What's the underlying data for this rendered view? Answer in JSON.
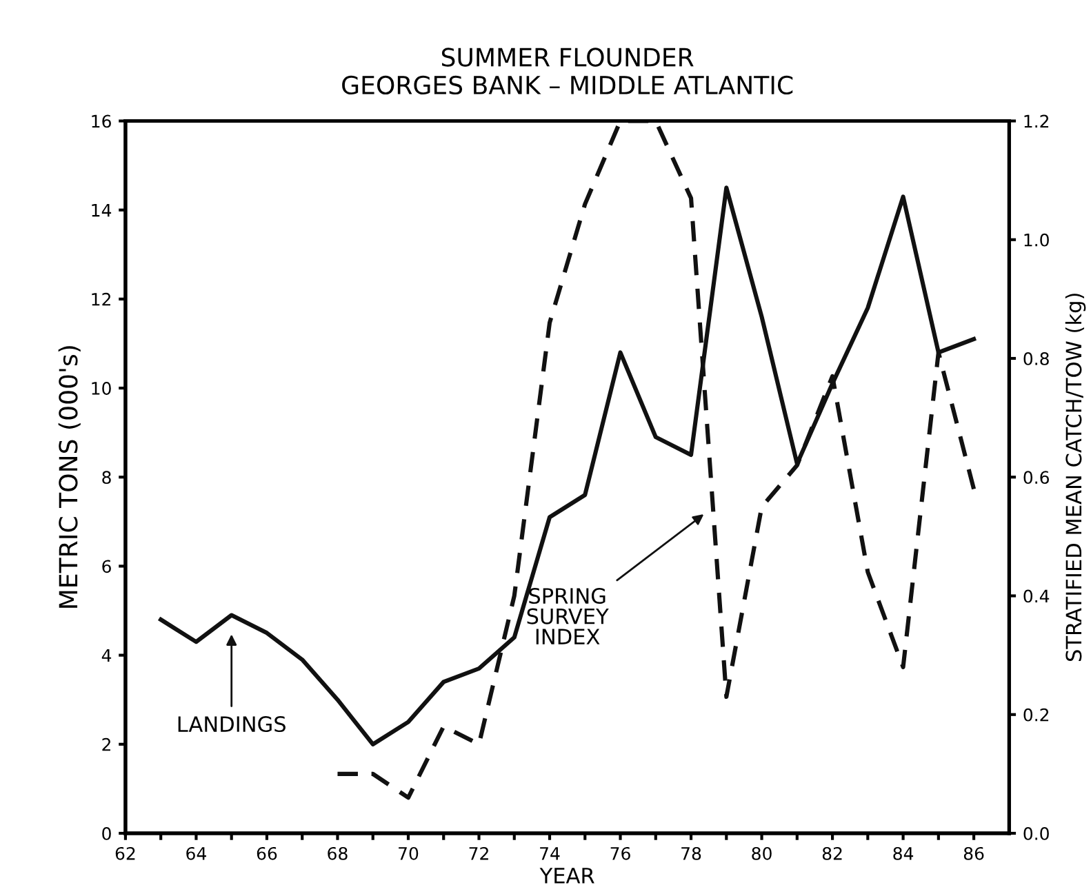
{
  "chart_data": {
    "type": "line",
    "title": "SUMMER FLOUNDER\nGEORGES BANK – MIDDLE ATLANTIC",
    "xlabel": "YEAR",
    "ylabel": "METRIC TONS (000's)",
    "y2label": "STRATIFIED MEAN CATCH/TOW (kg)",
    "series": [
      {
        "color": "#111111",
        "line_style": "solid",
        "x": [
          63,
          64,
          65,
          66,
          67,
          68,
          69,
          70,
          71,
          72,
          73,
          74,
          75,
          76,
          77,
          78,
          79,
          80,
          81,
          82,
          83,
          84,
          85,
          86
        ],
        "values": [
          4.8,
          4.3,
          4.9,
          4.5,
          3.9,
          3.0,
          2.0,
          2.5,
          3.4,
          3.7,
          4.4,
          7.1,
          7.6,
          10.8,
          8.9,
          8.5,
          14.5,
          11.6,
          8.3,
          10.1,
          11.8,
          14.3,
          10.8,
          11.1
        ]
      },
      {
        "color": "#111111",
        "line_style": "dashed",
        "axis": "y2",
        "x": [
          68,
          69,
          70,
          71,
          72,
          73,
          74,
          75,
          76,
          77,
          78,
          79,
          80,
          81,
          82,
          83,
          84,
          85,
          86
        ],
        "values": [
          0.1,
          0.1,
          0.06,
          0.18,
          0.15,
          0.4,
          0.86,
          1.06,
          1.2,
          1.2,
          1.07,
          0.23,
          0.55,
          0.62,
          0.77,
          0.44,
          0.28,
          0.81,
          0.58
        ]
      }
    ],
    "annotations": [
      "LANDINGS",
      "SPRING\nSURVEY\nINDEX"
    ],
    "xlim": [
      62,
      87
    ],
    "xticks": [
      62,
      {
        "value": 63,
        "label": null
      },
      64,
      {
        "value": 65,
        "label": null
      },
      66,
      {
        "value": 67,
        "label": null
      },
      68,
      {
        "value": 69,
        "label": null
      },
      70,
      {
        "value": 71,
        "label": null
      },
      72,
      {
        "value": 73,
        "label": null
      },
      74,
      {
        "value": 75,
        "label": null
      },
      76,
      {
        "value": 77,
        "label": null
      },
      78,
      {
        "value": 79,
        "label": null
      },
      80,
      {
        "value": 81,
        "label": null
      },
      82,
      {
        "value": 83,
        "label": null
      },
      84,
      {
        "value": 85,
        "label": null
      },
      86
    ],
    "ylim": [
      0,
      16
    ],
    "yticks": [
      0,
      2,
      4,
      6,
      8,
      10,
      12,
      14,
      16
    ],
    "y2lim": [
      0,
      1.2
    ],
    "y2ticks": [
      {
        "value": 0,
        "label": "0.0"
      },
      {
        "value": 0.2,
        "label": "0.2"
      },
      {
        "value": 0.4,
        "label": "0.4"
      },
      {
        "value": 0.6,
        "label": "0.6"
      },
      {
        "value": 0.8,
        "label": "0.8"
      },
      {
        "value": 1.0,
        "label": "1.0"
      },
      {
        "value": 1.2,
        "label": "1.2"
      }
    ],
    "grid": false,
    "legend": false
  }
}
